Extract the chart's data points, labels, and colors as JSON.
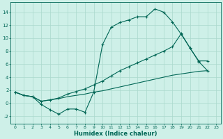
{
  "xlabel": "Humidex (Indice chaleur)",
  "xlim": [
    -0.5,
    23.5
  ],
  "ylim": [
    -3.2,
    15.5
  ],
  "xticks": [
    0,
    1,
    2,
    3,
    4,
    5,
    6,
    7,
    8,
    9,
    10,
    11,
    12,
    13,
    14,
    15,
    16,
    17,
    18,
    19,
    20,
    21,
    22,
    23
  ],
  "yticks": [
    -2,
    0,
    2,
    4,
    6,
    8,
    10,
    12,
    14
  ],
  "bg_color": "#cef0e8",
  "grid_color": "#aad8cc",
  "line_color": "#006655",
  "line1_x": [
    0,
    1,
    2,
    3,
    4,
    5,
    6,
    7,
    8,
    9,
    10,
    11,
    12,
    13,
    14,
    15,
    16,
    17,
    18,
    19,
    20,
    21,
    22
  ],
  "line1_y": [
    1.7,
    1.2,
    1.0,
    -0.2,
    -1.0,
    -1.7,
    -0.9,
    -0.9,
    -1.4,
    1.7,
    9.0,
    11.7,
    12.4,
    12.8,
    13.3,
    13.3,
    14.5,
    14.0,
    12.5,
    10.6,
    8.5,
    6.4,
    5.0
  ],
  "line2_x": [
    0,
    1,
    2,
    3,
    4,
    5,
    6,
    7,
    8,
    9,
    10,
    11,
    12,
    13,
    14,
    15,
    16,
    17,
    18,
    19,
    20,
    21,
    22
  ],
  "line2_y": [
    1.7,
    1.2,
    1.0,
    0.3,
    0.5,
    0.8,
    1.4,
    1.8,
    2.2,
    2.8,
    3.4,
    4.2,
    5.0,
    5.6,
    6.2,
    6.8,
    7.4,
    8.0,
    8.7,
    10.7,
    8.5,
    6.5,
    6.5
  ],
  "line3_x": [
    0,
    1,
    2,
    3,
    4,
    5,
    6,
    7,
    8,
    9,
    10,
    11,
    12,
    13,
    14,
    15,
    16,
    17,
    18,
    19,
    20,
    21,
    22
  ],
  "line3_y": [
    1.7,
    1.2,
    1.0,
    0.3,
    0.5,
    0.7,
    1.0,
    1.2,
    1.4,
    1.7,
    1.9,
    2.2,
    2.5,
    2.8,
    3.1,
    3.4,
    3.7,
    4.0,
    4.3,
    4.5,
    4.7,
    4.9,
    5.0
  ]
}
